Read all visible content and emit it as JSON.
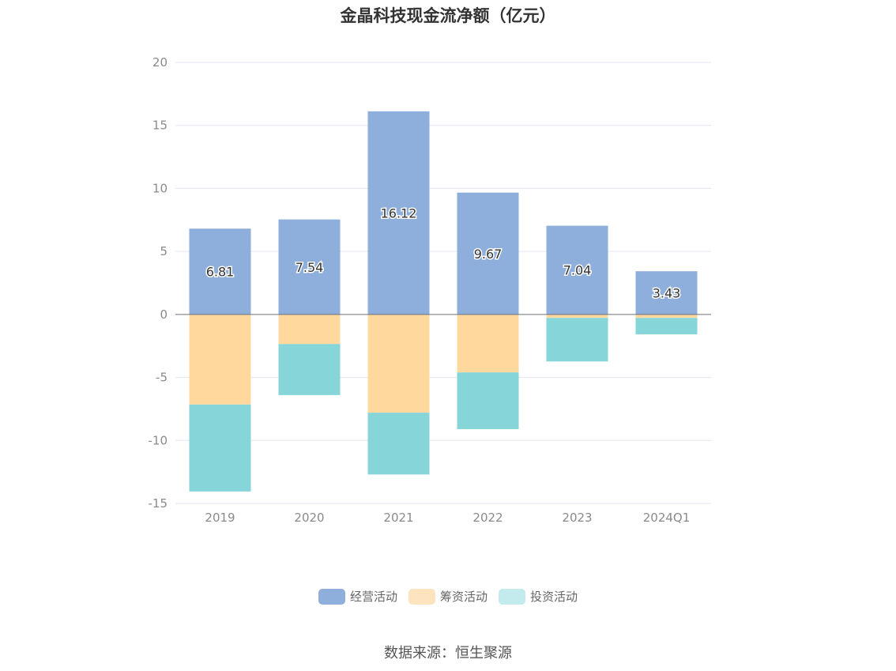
{
  "title": "金晶科技现金流净额（亿元）",
  "source": "数据来源：恒生聚源",
  "colors": {
    "operating": "#8eaedb",
    "financing": "#fed89c",
    "investing": "#86d5d8",
    "grid": "#e3e6ef",
    "zero_line": "#6e7079",
    "axis_text": "#8a8a8a"
  },
  "chart_data": {
    "type": "bar",
    "stacked": true,
    "categories": [
      "2019",
      "2020",
      "2021",
      "2022",
      "2023",
      "2024Q1"
    ],
    "ylim": [
      -15,
      20
    ],
    "yticks": [
      20,
      15,
      10,
      5,
      0,
      -5,
      -10,
      -15
    ],
    "grid": true,
    "legend_position": "bottom",
    "series": [
      {
        "name": "经营活动",
        "color_key": "operating",
        "values": [
          6.81,
          7.54,
          16.12,
          9.67,
          7.04,
          3.43
        ],
        "labels": [
          "6.81",
          "7.54",
          "16.12",
          "9.67",
          "7.04",
          "3.43"
        ]
      },
      {
        "name": "筹资活动",
        "color_key": "financing",
        "values": [
          -7.15,
          -2.35,
          -7.8,
          -4.6,
          -0.28,
          -0.28
        ]
      },
      {
        "name": "投资活动",
        "color_key": "investing",
        "values": [
          -6.9,
          -4.05,
          -4.9,
          -4.5,
          -3.45,
          -1.3
        ]
      }
    ]
  },
  "legend": [
    {
      "label": "经营活动",
      "color": "#8eaedb"
    },
    {
      "label": "筹资活动",
      "color": "#fde4bf"
    },
    {
      "label": "投资活动",
      "color": "#c3eaec"
    }
  ]
}
